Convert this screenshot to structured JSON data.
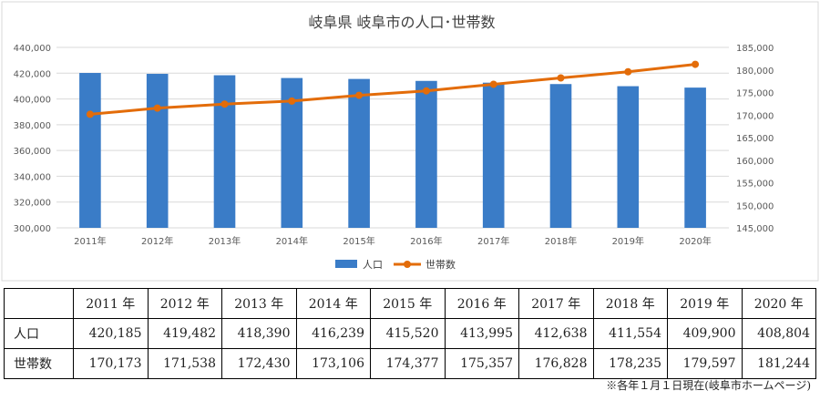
{
  "chart_data": {
    "type": "bar+line",
    "title": "岐阜県 岐阜市の人口･世帯数",
    "categories": [
      "2011年",
      "2012年",
      "2013年",
      "2014年",
      "2015年",
      "2016年",
      "2017年",
      "2018年",
      "2019年",
      "2020年"
    ],
    "series": [
      {
        "name": "人口",
        "type": "bar",
        "axis": "left",
        "color": "#3a7cc7",
        "values": [
          420185,
          419482,
          418390,
          416239,
          415520,
          413995,
          412638,
          411554,
          409900,
          408804
        ]
      },
      {
        "name": "世帯数",
        "type": "line",
        "axis": "right",
        "color": "#e36c09",
        "values": [
          170173,
          171538,
          172430,
          173106,
          174377,
          175357,
          176828,
          178235,
          179597,
          181244
        ]
      }
    ],
    "y_left": {
      "min": 300000,
      "max": 440000,
      "step": 20000,
      "ticks": [
        "300,000",
        "320,000",
        "340,000",
        "360,000",
        "380,000",
        "400,000",
        "420,000",
        "440,000"
      ]
    },
    "y_right": {
      "min": 145000,
      "max": 185000,
      "step": 5000,
      "ticks": [
        "145,000",
        "150,000",
        "155,000",
        "160,000",
        "165,000",
        "170,000",
        "175,000",
        "180,000",
        "185,000"
      ]
    },
    "legend_position": "bottom",
    "grid": true
  },
  "table": {
    "corner": "",
    "headers": [
      "2011 年",
      "2012 年",
      "2013 年",
      "2014 年",
      "2015 年",
      "2016 年",
      "2017 年",
      "2018 年",
      "2019 年",
      "2020 年"
    ],
    "rows": [
      {
        "label": "人口",
        "values": [
          "420,185",
          "419,482",
          "418,390",
          "416,239",
          "415,520",
          "413,995",
          "412,638",
          "411,554",
          "409,900",
          "408,804"
        ]
      },
      {
        "label": "世帯数",
        "values": [
          "170,173",
          "171,538",
          "172,430",
          "173,106",
          "174,377",
          "175,357",
          "176,828",
          "178,235",
          "179,597",
          "181,244"
        ]
      }
    ]
  },
  "source_note": "※各年１月１日現在(岐阜市ホームページ)"
}
